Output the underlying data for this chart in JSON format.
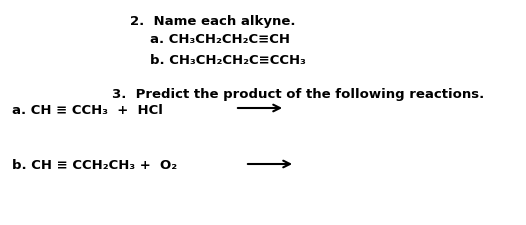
{
  "background_color": "#ffffff",
  "title2": "2.  Name each alkyne.",
  "line2a": "a. CH₃CH₂CH₂C≡CH",
  "line2b": "b. CH₃CH₂CH₂C≡CCH₃",
  "title3": "3.  Predict the product of the following reactions.",
  "line3a_text": "a. CH ≡ CCH₃  +  HCl",
  "line3b_text": "b. CH ≡ CCH₂CH₃ +  O₂",
  "font_size": 9.5,
  "font_weight": "bold",
  "font_family": "DejaVu Sans"
}
